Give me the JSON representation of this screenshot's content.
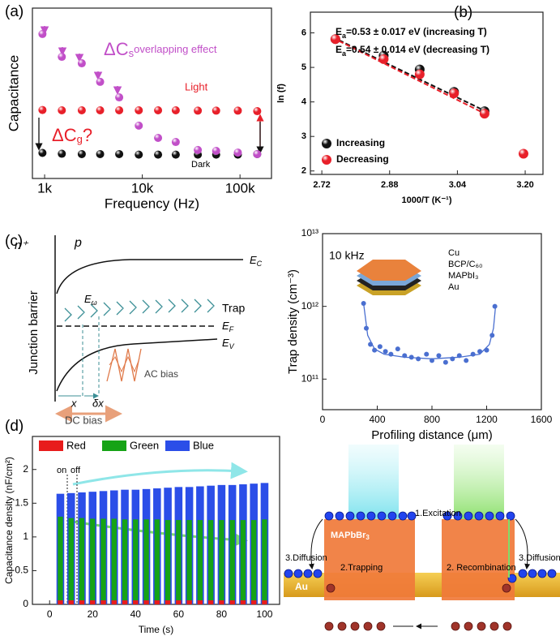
{
  "panel_labels": [
    "(a)",
    "(b)",
    "(c)",
    "(d)"
  ],
  "chart_data": [
    {
      "type": "scatter",
      "xlabel": "Frequency (Hz)",
      "ylabel": "Capacitance",
      "xscale": "log",
      "xlim": [
        750,
        210000
      ],
      "ylim": [
        0,
        10
      ],
      "xticks": [
        {
          "value": 1000,
          "label": "1k"
        },
        {
          "value": 10000,
          "label": "10k"
        },
        {
          "value": 100000,
          "label": "100k"
        }
      ],
      "x": [
        950,
        1500,
        2400,
        3700,
        5800,
        9200,
        14500,
        22000,
        37000,
        57000,
        95000,
        150000
      ],
      "series": [
        {
          "name": "Light",
          "color": "#e8202a",
          "values": [
            4.02,
            4.0,
            4.0,
            4.0,
            4.0,
            4.0,
            4.0,
            4.0,
            3.98,
            3.98,
            3.98,
            3.95
          ]
        },
        {
          "name": "Dark",
          "color": "#111111",
          "values": [
            1.5,
            1.45,
            1.43,
            1.43,
            1.43,
            1.4,
            1.4,
            1.4,
            1.4,
            1.4,
            1.4,
            1.43
          ]
        },
        {
          "color": "#c14fc8",
          "values": [
            8.48,
            7.14,
            6.76,
            5.67,
            4.76,
            3.1,
            2.38,
            2.14,
            1.67,
            1.62,
            1.52,
            1.43
          ]
        }
      ],
      "annotations": [
        "ΔC",
        "s",
        "overlapping effect",
        "ΔC",
        "g",
        "?"
      ]
    },
    {
      "type": "scatter",
      "xlabel": "1000/T (K⁻¹)",
      "ylabel": "ln (f)",
      "xlim": [
        2.693,
        3.242
      ],
      "ylim": [
        1.9,
        6.6
      ],
      "xticks": [
        2.72,
        2.88,
        3.04,
        {
          "value": 3.2,
          "label": "3.20"
        }
      ],
      "yticks": [
        2,
        3,
        4,
        5,
        6
      ],
      "legend": "lower left",
      "series": [
        {
          "name": "Increasing",
          "color": "#111111",
          "x": [
            2.752,
            2.866,
            2.951,
            3.032,
            3.104
          ],
          "values": [
            5.82,
            5.34,
            4.94,
            4.29,
            3.73
          ]
        },
        {
          "name": "Decreasing",
          "color": "#e8202a",
          "x": [
            2.752,
            2.866,
            2.951,
            3.032,
            3.104,
            3.196
          ],
          "values": [
            5.82,
            5.24,
            4.8,
            4.25,
            3.66,
            2.5
          ]
        }
      ],
      "fit_lines": [
        {
          "color": "#111111",
          "dashed": true,
          "x": [
            2.745,
            3.105
          ],
          "values": [
            5.88,
            3.74
          ]
        },
        {
          "color": "#e8202a",
          "dashed": true,
          "x": [
            2.745,
            3.105
          ],
          "values": [
            5.86,
            3.66
          ]
        }
      ],
      "annotations": [
        "E",
        "a",
        "=0.53 ± 0.017 eV (increasing T)",
        "E",
        "a",
        "=0.54 ± 0.014 eV (decreasing T)"
      ]
    },
    {
      "type": "scatter",
      "xlabel": "Profiling distance (μm)",
      "ylabel": "Trap density (cm⁻³)",
      "yscale": "log",
      "xlim": [
        0,
        1600
      ],
      "ylim": [
        38000000000,
        10000000000000.0
      ],
      "xticks": [
        0,
        400,
        800,
        1200,
        1600
      ],
      "yticks": [
        {
          "value": 100000000000.0,
          "label": "10¹¹"
        },
        {
          "value": 1000000000000.0,
          "label": "10¹²"
        },
        {
          "value": 10000000000000.0,
          "label": "10¹³"
        }
      ],
      "series": [
        {
          "color": "#4a6fd0",
          "x": [
            300,
            320,
            350,
            380,
            420,
            460,
            500,
            550,
            600,
            650,
            700,
            760,
            800,
            850,
            900,
            950,
            1000,
            1050,
            1100,
            1150,
            1200,
            1240,
            1260
          ],
          "values": [
            1100000000000.0,
            500000000000.0,
            300000000000.0,
            250000000000.0,
            280000000000.0,
            240000000000.0,
            220000000000.0,
            260000000000.0,
            210000000000.0,
            200000000000.0,
            190000000000.0,
            220000000000.0,
            180000000000.0,
            210000000000.0,
            170000000000.0,
            190000000000.0,
            210000000000.0,
            180000000000.0,
            220000000000.0,
            240000000000.0,
            250000000000.0,
            400000000000.0,
            1000000000000.0
          ]
        }
      ],
      "fit_lines": [
        {
          "color": "#4a6fd0",
          "dashed": false,
          "x": [
            300,
            330,
            380,
            450,
            600,
            800,
            1000,
            1150,
            1220,
            1250,
            1265
          ],
          "values": [
            1100000000000.0,
            400000000000.0,
            260000000000.0,
            220000000000.0,
            200000000000.0,
            190000000000.0,
            200000000000.0,
            220000000000.0,
            300000000000.0,
            500000000000.0,
            1000000000000.0
          ]
        }
      ],
      "annotations": [
        "10 kHz"
      ],
      "stack_labels": [
        "Cu",
        "BCP/C₆₀",
        "MAPbI₃",
        "Au"
      ]
    },
    {
      "type": "bar",
      "xlabel": "Time (s)",
      "ylabel": "Capacitance density (nF/cm²)",
      "xlim": [
        -8,
        107
      ],
      "ylim": [
        0,
        2.49
      ],
      "xticks": [
        0,
        20,
        40,
        60,
        80,
        100
      ],
      "yticks": [
        0,
        0.5,
        1,
        1.5,
        2
      ],
      "legend": "top",
      "x": [
        5,
        10,
        15,
        20,
        25,
        30,
        35,
        40,
        45,
        50,
        55,
        60,
        65,
        70,
        75,
        80,
        85,
        90,
        95,
        100
      ],
      "series": [
        {
          "name": "Red",
          "color": "#e81c1c",
          "values": [
            0.06,
            0.06,
            0.06,
            0.06,
            0.06,
            0.06,
            0.06,
            0.06,
            0.06,
            0.06,
            0.06,
            0.06,
            0.06,
            0.06,
            0.06,
            0.06,
            0.06,
            0.06,
            0.06,
            0.06
          ]
        },
        {
          "name": "Green",
          "color": "#16a316",
          "values": [
            1.3,
            1.28,
            1.28,
            1.27,
            1.27,
            1.27,
            1.26,
            1.26,
            1.26,
            1.26,
            1.25,
            1.25,
            1.25,
            1.25,
            1.25,
            1.25,
            1.25,
            1.25,
            1.25,
            1.26
          ]
        },
        {
          "name": "Blue",
          "color": "#2b4ee8",
          "values": [
            1.64,
            1.65,
            1.66,
            1.67,
            1.68,
            1.69,
            1.7,
            1.7,
            1.71,
            1.72,
            1.73,
            1.74,
            1.74,
            1.75,
            1.76,
            1.77,
            1.77,
            1.78,
            1.79,
            1.8
          ]
        }
      ],
      "annotations": [
        "on",
        "off"
      ]
    }
  ],
  "band_diagram": {
    "n_plus": "n⁺",
    "p": "p",
    "ec": [
      "E",
      "C"
    ],
    "ew": [
      "E",
      "ω"
    ],
    "ef": [
      "E",
      "F"
    ],
    "ev": [
      "E",
      "V"
    ],
    "trap": "Trap",
    "junction": "Junction barrier",
    "ac": "AC bias",
    "x": "x",
    "dx": "δx",
    "dc": "DC bias"
  },
  "mechanism": {
    "material": [
      "MAPbBr",
      "3"
    ],
    "au": "Au",
    "excitation": "1.Excitation",
    "trapping": "2.Trapping",
    "recombination": "2. Recombination",
    "diffusion_left": "3.Diffusion",
    "diffusion_right": "3.Diffusion"
  }
}
